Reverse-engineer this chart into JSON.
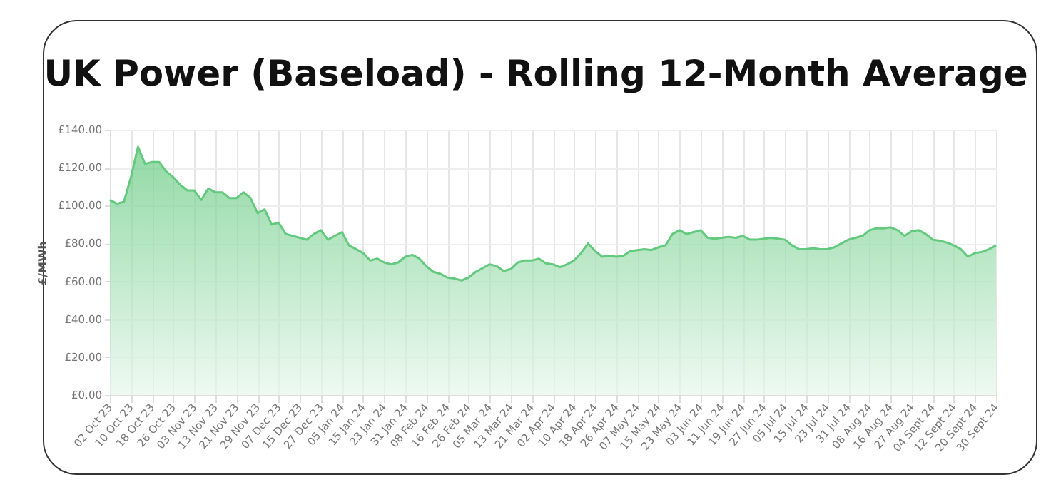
{
  "chart_data": {
    "type": "area",
    "title": "UK Power (Baseload) - Rolling 12-Month Average",
    "ylabel": "£/MWh",
    "categories": [
      "02 Oct 23",
      null,
      null,
      "10 Oct 23",
      null,
      null,
      "18 Oct 23",
      null,
      null,
      "26 Oct 23",
      null,
      null,
      "03 Nov 23",
      null,
      null,
      "13 Nov 23",
      null,
      null,
      "21 Nov 23",
      null,
      null,
      "29 Nov 23",
      null,
      null,
      "07 Dec 23",
      null,
      null,
      "15 Dec 23",
      null,
      null,
      "27 Dec 23",
      null,
      null,
      "05 Jan 24",
      null,
      null,
      "15 Jan 24",
      null,
      null,
      "23 Jan 24",
      null,
      null,
      "31 Jan 24",
      null,
      null,
      "08 Feb 24",
      null,
      null,
      "16 Feb 24",
      null,
      null,
      "26 Feb 24",
      null,
      null,
      "05 Mar 24",
      null,
      null,
      "13 Mar 24",
      null,
      null,
      "21 Mar 24",
      null,
      null,
      "02 Apr 24",
      null,
      null,
      "10 Apr 24",
      null,
      null,
      "18 Apr 24",
      null,
      null,
      "26 Apr 24",
      null,
      null,
      "07 May 24",
      null,
      null,
      "15 May 24",
      null,
      null,
      "23 May 24",
      null,
      null,
      "03 Jun 24",
      null,
      null,
      "11 Jun 24",
      null,
      null,
      "19 Jun 24",
      null,
      null,
      "27 Jun 24",
      null,
      null,
      "05 Jul 24",
      null,
      null,
      "15 Jul 24",
      null,
      null,
      "23 Jul 24",
      null,
      null,
      "31 Jul 24",
      null,
      null,
      "08 Aug 24",
      null,
      null,
      "16 Aug 24",
      null,
      null,
      "27 Aug 24",
      null,
      null,
      "04 Sept 24",
      null,
      null,
      "12 Sept 24",
      null,
      null,
      "20 Sept 24",
      null,
      null,
      "30 Sept 24"
    ],
    "series": [
      {
        "color": "#62c97e",
        "values": [
          103,
          101,
          102,
          115,
          131,
          122,
          123,
          123,
          118,
          115,
          111,
          108,
          108,
          103,
          109,
          107,
          107,
          104,
          104,
          107,
          104,
          96,
          98,
          90,
          91,
          85,
          84,
          83,
          82,
          85,
          87,
          82,
          84,
          86,
          79,
          77,
          75,
          71,
          72,
          70,
          69,
          70,
          73,
          74,
          72,
          68,
          65,
          64,
          62,
          61.5,
          60.5,
          62,
          65,
          67,
          69,
          68,
          65.5,
          66.5,
          70,
          71,
          71,
          72,
          69.5,
          69,
          67.5,
          69,
          71,
          75,
          80,
          76,
          73,
          73.5,
          73,
          73.5,
          76,
          76.5,
          77,
          76.5,
          78,
          79,
          85,
          87,
          85,
          86,
          87,
          83,
          82.5,
          83,
          83.5,
          83,
          84,
          82,
          82,
          82.5,
          83,
          82.5,
          82,
          79,
          77,
          77,
          77.5,
          77,
          77,
          78,
          80,
          82,
          83,
          84,
          87,
          88,
          88,
          88.5,
          87,
          84,
          86.5,
          87,
          85,
          82,
          81.5,
          80.5,
          79,
          77,
          73,
          75,
          75.5,
          77,
          79
        ]
      }
    ],
    "ylim": [
      0,
      140
    ],
    "yticks": [
      {
        "value": 0,
        "label": "£0.00"
      },
      {
        "value": 20,
        "label": "£20.00"
      },
      {
        "value": 40,
        "label": "£40.00"
      },
      {
        "value": 60,
        "label": "£60.00"
      },
      {
        "value": 80,
        "label": "£80.00"
      },
      {
        "value": 100,
        "label": "£100.00"
      },
      {
        "value": 120,
        "label": "£120.00"
      },
      {
        "value": 140,
        "label": "£140.00"
      }
    ],
    "grid": true
  }
}
